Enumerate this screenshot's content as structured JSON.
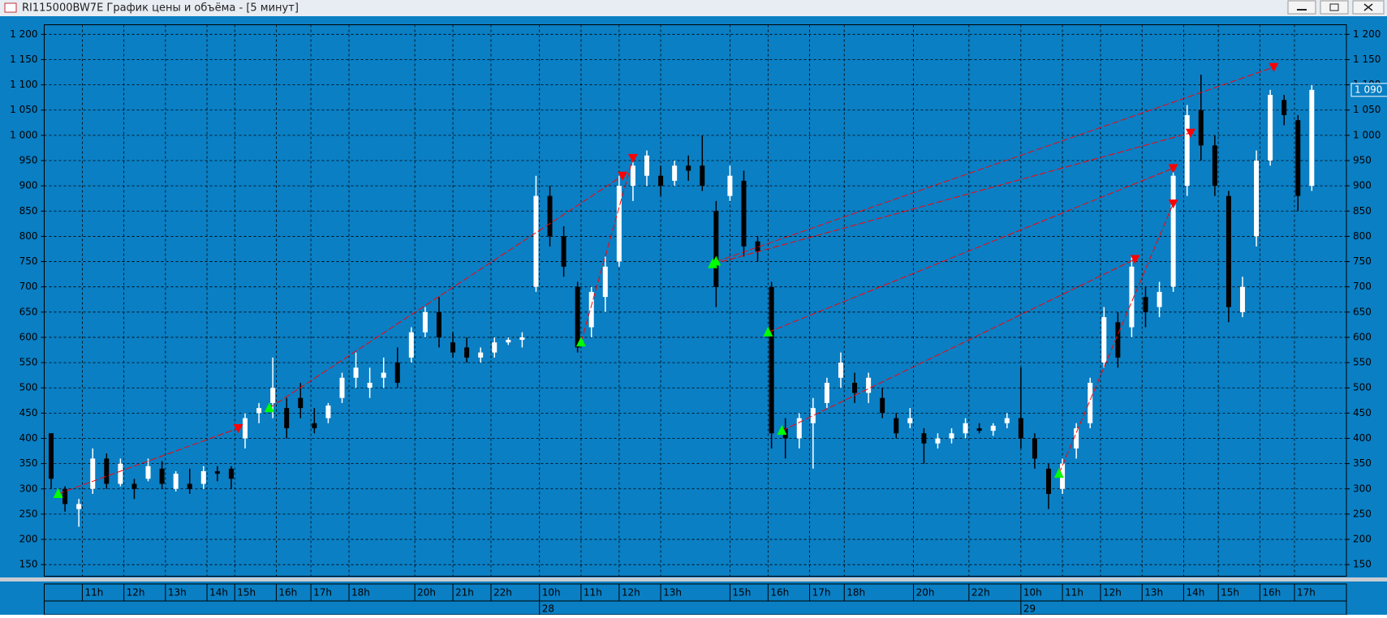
{
  "chart_data": {
    "type": "candlestick",
    "title": "RI115000BW7E График цены и объёма - [5 минут]",
    "xlim": [
      0,
      376
    ],
    "ylim": [
      127,
      1219
    ],
    "yticks": [
      150,
      200,
      250,
      300,
      350,
      400,
      450,
      500,
      550,
      600,
      650,
      700,
      750,
      800,
      850,
      900,
      950,
      {
        "value": 1000,
        "label": "1 000"
      },
      {
        "value": 1050,
        "label": "1 050"
      },
      {
        "value": 1100,
        "label": "1 100"
      },
      {
        "value": 1150,
        "label": "1 150"
      },
      {
        "value": 1200,
        "label": "1 200"
      }
    ],
    "xticks": [
      {
        "value": 11,
        "label": "11h"
      },
      {
        "value": 23,
        "label": "12h"
      },
      {
        "value": 35,
        "label": "13h"
      },
      {
        "value": 47,
        "label": "14h"
      },
      {
        "value": 55,
        "label": "15h"
      },
      {
        "value": 67,
        "label": "16h"
      },
      {
        "value": 77,
        "label": "17h"
      },
      {
        "value": 88,
        "label": "18h"
      },
      {
        "value": 107,
        "label": "20h"
      },
      {
        "value": 118,
        "label": "21h"
      },
      {
        "value": 129,
        "label": "22h"
      },
      {
        "value": 143,
        "label": "10h"
      },
      {
        "value": 155,
        "label": "11h"
      },
      {
        "value": 166,
        "label": "12h"
      },
      {
        "value": 178,
        "label": "13h"
      },
      {
        "value": 198,
        "label": "15h"
      },
      {
        "value": 209,
        "label": "16h"
      },
      {
        "value": 221,
        "label": "17h"
      },
      {
        "value": 231,
        "label": "18h"
      },
      {
        "value": 251,
        "label": "20h"
      },
      {
        "value": 267,
        "label": "22h"
      },
      {
        "value": 282,
        "label": "10h"
      },
      {
        "value": 294,
        "label": "11h"
      },
      {
        "value": 305,
        "label": "12h"
      },
      {
        "value": 317,
        "label": "13h"
      },
      {
        "value": 329,
        "label": "14h"
      },
      {
        "value": 339,
        "label": "15h"
      },
      {
        "value": 351,
        "label": "16h"
      },
      {
        "value": 361,
        "label": "17h"
      }
    ],
    "date_ticks": [
      {
        "value": 143,
        "label": "28"
      },
      {
        "value": 282,
        "label": "29"
      }
    ],
    "last_price": {
      "value": 1090,
      "label": "1 090"
    },
    "grid": true,
    "background": "#0a7fc4",
    "up_color": "#ffffff",
    "down_color": "#000000",
    "buy_color": "#00ff00",
    "sell_color": "#ff0000",
    "x": [
      2,
      6,
      10,
      14,
      18,
      22,
      26,
      30,
      34,
      38,
      42,
      46,
      50,
      54,
      58,
      62,
      66,
      70,
      74,
      78,
      82,
      86,
      90,
      94,
      98,
      102,
      106,
      110,
      114,
      118,
      122,
      126,
      130,
      134,
      138,
      142,
      146,
      150,
      154,
      158,
      162,
      166,
      170,
      174,
      178,
      182,
      186,
      190,
      194,
      198,
      202,
      206,
      210,
      214,
      218,
      222,
      226,
      230,
      234,
      238,
      242,
      246,
      250,
      254,
      258,
      262,
      266,
      270,
      274,
      278,
      282,
      286,
      290,
      294,
      298,
      302,
      306,
      310,
      314,
      318,
      322,
      326,
      330,
      334,
      338,
      342,
      346,
      350,
      354,
      358,
      362,
      366
    ],
    "open": [
      410,
      300,
      260,
      300,
      360,
      310,
      310,
      320,
      340,
      300,
      310,
      310,
      335,
      340,
      400,
      450,
      470,
      460,
      480,
      430,
      440,
      480,
      520,
      500,
      520,
      550,
      560,
      610,
      650,
      590,
      580,
      560,
      570,
      590,
      595,
      700,
      880,
      800,
      700,
      620,
      680,
      750,
      900,
      920,
      920,
      910,
      940,
      940,
      850,
      880,
      910,
      790,
      700,
      420,
      400,
      430,
      470,
      520,
      510,
      490,
      480,
      440,
      430,
      410,
      390,
      400,
      410,
      420,
      415,
      430,
      440,
      400,
      340,
      300,
      380,
      430,
      550,
      630,
      620,
      680,
      660,
      700,
      900,
      1050,
      980,
      880,
      650,
      800,
      950,
      1070,
      1030,
      900
    ],
    "high": [
      410,
      305,
      280,
      380,
      370,
      360,
      320,
      360,
      355,
      335,
      340,
      345,
      345,
      345,
      450,
      470,
      560,
      480,
      510,
      460,
      470,
      530,
      570,
      540,
      560,
      580,
      620,
      660,
      680,
      610,
      600,
      580,
      600,
      600,
      610,
      920,
      900,
      820,
      710,
      700,
      760,
      920,
      960,
      970,
      940,
      950,
      960,
      1000,
      870,
      940,
      930,
      800,
      710,
      440,
      450,
      480,
      520,
      570,
      530,
      530,
      500,
      450,
      460,
      420,
      410,
      420,
      440,
      430,
      430,
      450,
      540,
      410,
      350,
      360,
      430,
      520,
      660,
      650,
      760,
      700,
      710,
      940,
      1060,
      1120,
      1000,
      890,
      720,
      970,
      1090,
      1080,
      1040,
      1100
    ],
    "low": [
      300,
      255,
      225,
      290,
      300,
      305,
      280,
      315,
      300,
      295,
      290,
      300,
      315,
      300,
      380,
      430,
      440,
      400,
      440,
      410,
      430,
      470,
      500,
      480,
      500,
      500,
      550,
      600,
      580,
      560,
      550,
      550,
      560,
      585,
      580,
      690,
      780,
      720,
      570,
      600,
      650,
      740,
      870,
      900,
      880,
      900,
      910,
      890,
      660,
      870,
      760,
      750,
      380,
      360,
      380,
      340,
      460,
      500,
      470,
      470,
      440,
      400,
      420,
      350,
      380,
      390,
      400,
      410,
      405,
      420,
      380,
      340,
      260,
      290,
      360,
      420,
      540,
      540,
      600,
      620,
      640,
      690,
      880,
      950,
      880,
      630,
      640,
      780,
      940,
      1020,
      850,
      890
    ],
    "close": [
      320,
      270,
      270,
      360,
      310,
      350,
      300,
      345,
      310,
      330,
      300,
      335,
      330,
      320,
      440,
      460,
      500,
      420,
      460,
      420,
      465,
      520,
      540,
      510,
      530,
      510,
      610,
      650,
      600,
      570,
      560,
      570,
      590,
      595,
      600,
      880,
      800,
      740,
      580,
      690,
      740,
      900,
      940,
      960,
      900,
      940,
      930,
      900,
      700,
      920,
      780,
      770,
      410,
      400,
      440,
      460,
      510,
      550,
      490,
      520,
      450,
      410,
      440,
      390,
      400,
      410,
      430,
      415,
      425,
      440,
      400,
      360,
      290,
      350,
      420,
      510,
      640,
      560,
      740,
      650,
      690,
      920,
      1040,
      980,
      900,
      660,
      700,
      950,
      1080,
      1040,
      880,
      1090
    ],
    "trades": [
      {
        "entry": {
          "x": 4,
          "y": 290
        },
        "exit": {
          "x": 56,
          "y": 420
        }
      },
      {
        "entry": {
          "x": 65,
          "y": 460
        },
        "exit": {
          "x": 167,
          "y": 920
        }
      },
      {
        "entry": {
          "x": 155,
          "y": 590
        },
        "exit": {
          "x": 170,
          "y": 955
        }
      },
      {
        "entry": {
          "x": 193,
          "y": 745
        },
        "exit": {
          "x": 331,
          "y": 1005
        }
      },
      {
        "entry": {
          "x": 194,
          "y": 750
        },
        "exit": {
          "x": 355,
          "y": 1135
        }
      },
      {
        "entry": {
          "x": 209,
          "y": 610
        },
        "exit": {
          "x": 326,
          "y": 935
        }
      },
      {
        "entry": {
          "x": 213,
          "y": 415
        },
        "exit": {
          "x": 315,
          "y": 755
        }
      },
      {
        "entry": {
          "x": 293,
          "y": 330
        },
        "exit": {
          "x": 326,
          "y": 865
        }
      }
    ]
  }
}
